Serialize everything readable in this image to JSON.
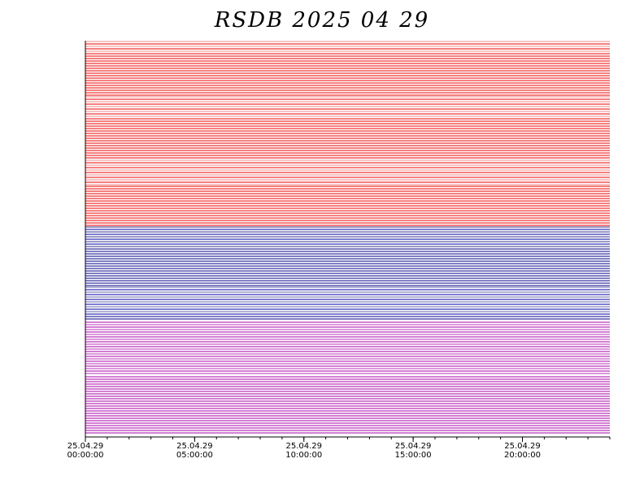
{
  "chart_data": {
    "type": "availability",
    "title": "RSDB 2025 04 29",
    "xlim": [
      0,
      24
    ],
    "xticks": [
      {
        "value": 0,
        "label": "25.04.29 00:00:00"
      },
      {
        "value": 5,
        "label": "25.04.29 05:00:00"
      },
      {
        "value": 10,
        "label": "25.04.29 10:00:00"
      },
      {
        "value": 15,
        "label": "25.04.29 15:00:00"
      },
      {
        "value": 20,
        "label": "25.04.29 20:00:00"
      }
    ]
  }
}
